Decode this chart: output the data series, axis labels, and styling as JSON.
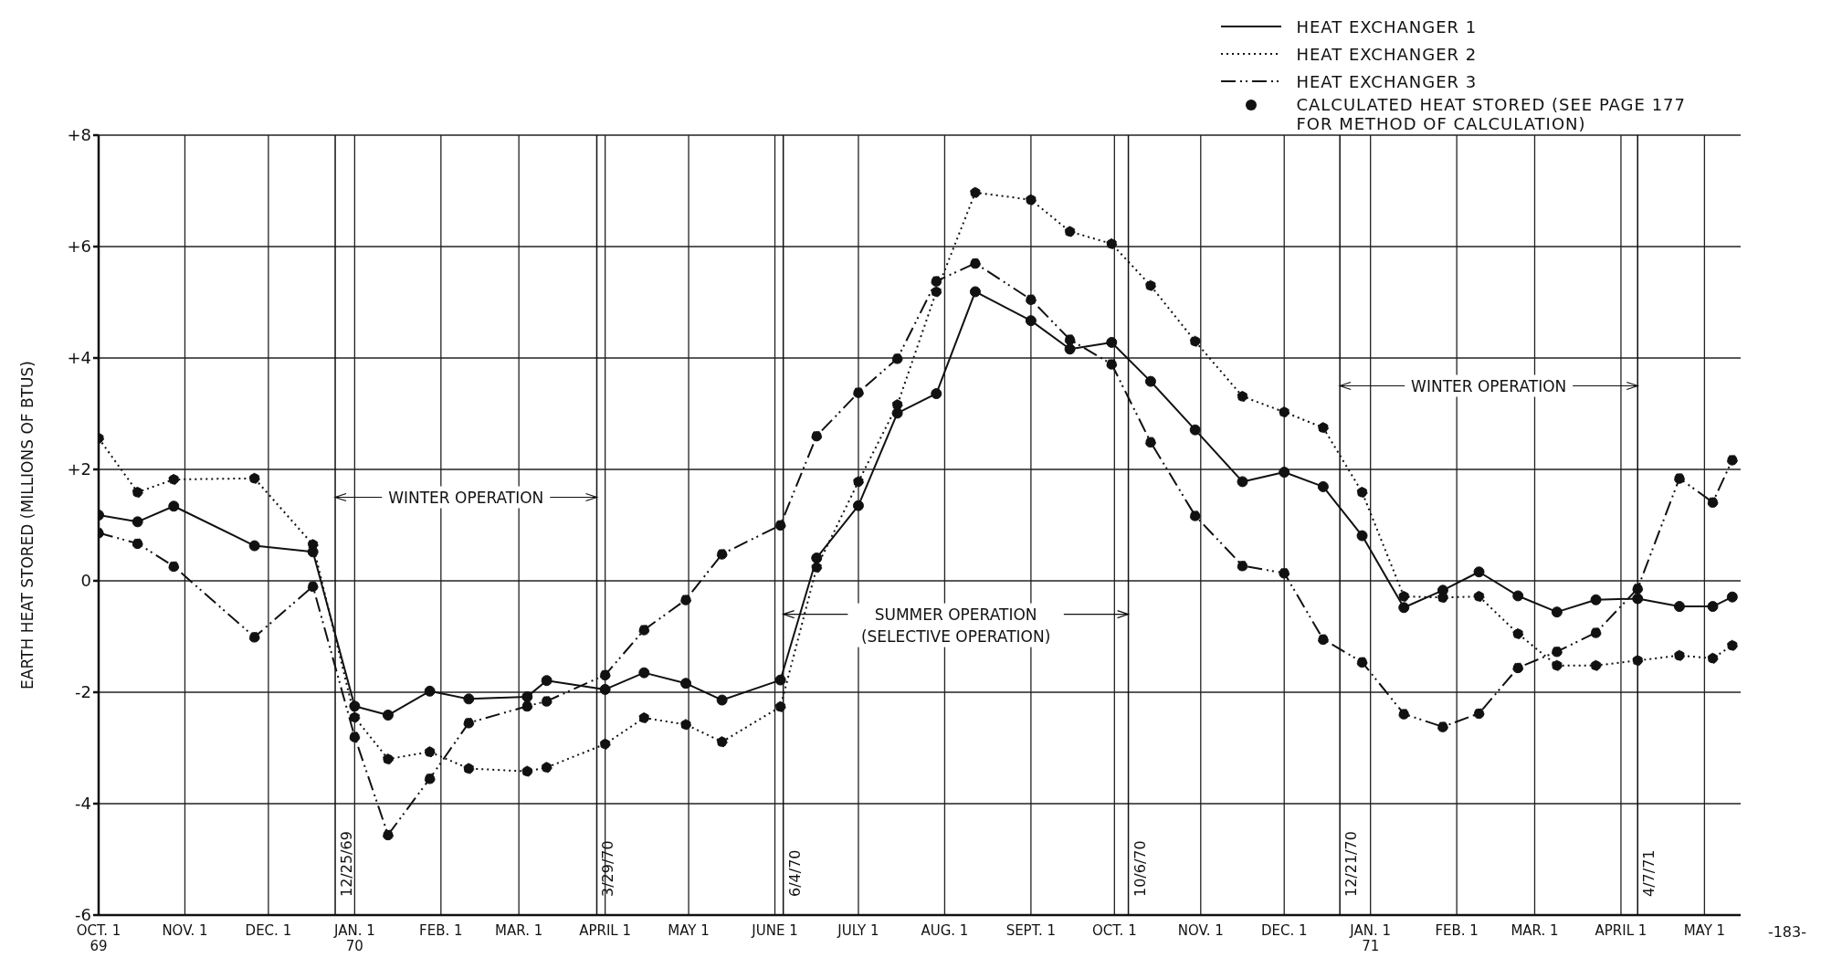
{
  "chart_data": {
    "type": "line",
    "ylabel": "EARTH HEAT STORED (MILLIONS OF BTUS)",
    "x": [
      "1969-10-01",
      "1969-10-15",
      "1969-10-28",
      "1969-11-26",
      "1969-12-17",
      "1970-01-01",
      "1970-01-13",
      "1970-01-28",
      "1970-02-11",
      "1970-03-04",
      "1970-03-11",
      "1970-04-01",
      "1970-04-15",
      "1970-04-30",
      "1970-05-13",
      "1970-06-03",
      "1970-06-16",
      "1970-07-01",
      "1970-07-15",
      "1970-07-29",
      "1970-08-12",
      "1970-09-01",
      "1970-09-15",
      "1970-09-30",
      "1970-10-14",
      "1970-10-30",
      "1970-11-16",
      "1970-12-01",
      "1970-12-15",
      "1970-12-29",
      "1971-01-13",
      "1971-01-27",
      "1971-02-09",
      "1971-02-23",
      "1971-03-09",
      "1971-03-23",
      "1971-04-07",
      "1971-04-22",
      "1971-05-04",
      "1971-05-11"
    ],
    "series": [
      {
        "name": "HEAT EXCHANGER 1",
        "color": "#111111",
        "line_style": "solid",
        "values": [
          1.18,
          1.06,
          1.34,
          0.63,
          0.52,
          -2.25,
          -2.41,
          -1.98,
          -2.12,
          -2.08,
          -1.79,
          -1.95,
          -1.65,
          -1.84,
          -2.14,
          -1.78,
          0.41,
          1.35,
          3.01,
          3.36,
          5.19,
          4.67,
          4.16,
          4.28,
          3.58,
          2.71,
          1.78,
          1.95,
          1.69,
          0.81,
          -0.48,
          -0.17,
          0.16,
          -0.27,
          -0.56,
          -0.34,
          -0.32,
          -0.46,
          -0.46,
          -0.29
        ]
      },
      {
        "name": "HEAT EXCHANGER 2",
        "color": "#111111",
        "line_style": "dotted",
        "values": [
          2.56,
          1.59,
          1.82,
          1.84,
          0.65,
          -2.45,
          -3.2,
          -3.07,
          -3.37,
          -3.42,
          -3.35,
          -2.93,
          -2.46,
          -2.58,
          -2.89,
          -2.26,
          0.24,
          1.78,
          3.16,
          5.19,
          6.97,
          6.84,
          6.27,
          6.05,
          5.3,
          4.3,
          3.31,
          3.03,
          2.75,
          1.59,
          -0.28,
          -0.3,
          -0.28,
          -0.95,
          -1.52,
          -1.52,
          -1.43,
          -1.34,
          -1.39,
          -1.16
        ]
      },
      {
        "name": "HEAT EXCHANGER 3",
        "color": "#111111",
        "line_style": "dashed",
        "values": [
          0.86,
          0.67,
          0.26,
          -1.01,
          -0.1,
          -2.8,
          -4.56,
          -3.55,
          -2.55,
          -2.25,
          -2.16,
          -1.69,
          -0.88,
          -0.34,
          0.48,
          1.0,
          2.6,
          3.38,
          3.99,
          5.38,
          5.7,
          5.05,
          4.33,
          3.89,
          2.49,
          1.17,
          0.27,
          0.14,
          -1.05,
          -1.46,
          -2.39,
          -2.62,
          -2.38,
          -1.56,
          -1.27,
          -0.93,
          -0.14,
          1.84,
          1.41,
          2.17
        ]
      }
    ],
    "marker": "circle",
    "xlim": [
      "1969-10-01",
      "1971-05-14"
    ],
    "xticks": [
      {
        "value": "1969-10-01",
        "label": "OCT. 1\n69"
      },
      {
        "value": "1969-11-01",
        "label": "NOV. 1"
      },
      {
        "value": "1969-12-01",
        "label": "DEC. 1"
      },
      {
        "value": "1970-01-01",
        "label": "JAN. 1\n70"
      },
      {
        "value": "1970-02-01",
        "label": "FEB. 1"
      },
      {
        "value": "1970-03-01",
        "label": "MAR. 1"
      },
      {
        "value": "1970-04-01",
        "label": "APRIL 1"
      },
      {
        "value": "1970-05-01",
        "label": "MAY 1"
      },
      {
        "value": "1970-06-01",
        "label": "JUNE 1"
      },
      {
        "value": "1970-07-01",
        "label": "JULY 1"
      },
      {
        "value": "1970-08-01",
        "label": "AUG. 1"
      },
      {
        "value": "1970-09-01",
        "label": "SEPT. 1"
      },
      {
        "value": "1970-10-01",
        "label": "OCT. 1"
      },
      {
        "value": "1970-11-01",
        "label": "NOV. 1"
      },
      {
        "value": "1970-12-01",
        "label": "DEC. 1"
      },
      {
        "value": "1971-01-01",
        "label": "JAN. 1\n71"
      },
      {
        "value": "1971-02-01",
        "label": "FEB. 1"
      },
      {
        "value": "1971-03-01",
        "label": "MAR. 1"
      },
      {
        "value": "1971-04-01",
        "label": "APRIL 1"
      },
      {
        "value": "1971-05-01",
        "label": "MAY 1"
      }
    ],
    "ylim": [
      -6,
      8
    ],
    "yticks": [
      {
        "value": -6,
        "label": "-6"
      },
      {
        "value": -4,
        "label": "-4"
      },
      {
        "value": -2,
        "label": "-2"
      },
      0,
      {
        "value": 2,
        "label": "+2"
      },
      {
        "value": 4,
        "label": "+4"
      },
      {
        "value": 6,
        "label": "+6"
      },
      {
        "value": 8,
        "label": "+8"
      }
    ],
    "grid": true,
    "legend": "top right",
    "ref_lines": [
      {
        "axis": "x",
        "value": "1969-12-25",
        "label": "12/25/69"
      },
      {
        "axis": "x",
        "value": "1970-03-29",
        "label": "3/29/70"
      },
      {
        "axis": "x",
        "value": "1970-06-04",
        "label": "6/4/70"
      },
      {
        "axis": "x",
        "value": "1970-10-06",
        "label": "10/6/70"
      },
      {
        "axis": "x",
        "value": "1970-12-21",
        "label": "12/21/70"
      },
      {
        "axis": "x",
        "value": "1971-04-07",
        "label": "4/7/71"
      }
    ],
    "annotations": [
      "CALCULATED HEAT STORED (SEE PAGE 177\nFOR METHOD OF CALCULATION)",
      "-183-",
      {
        "text": "WINTER OPERATION",
        "x": "1970-03-29",
        "y": 1.5
      },
      {
        "text": "SUMMER OPERATION\n(SELECTIVE OPERATION)",
        "x": "1970-10-06",
        "y": -0.6
      },
      {
        "text": "WINTER OPERATION",
        "x": "1971-04-07",
        "y": 3.5
      }
    ]
  }
}
